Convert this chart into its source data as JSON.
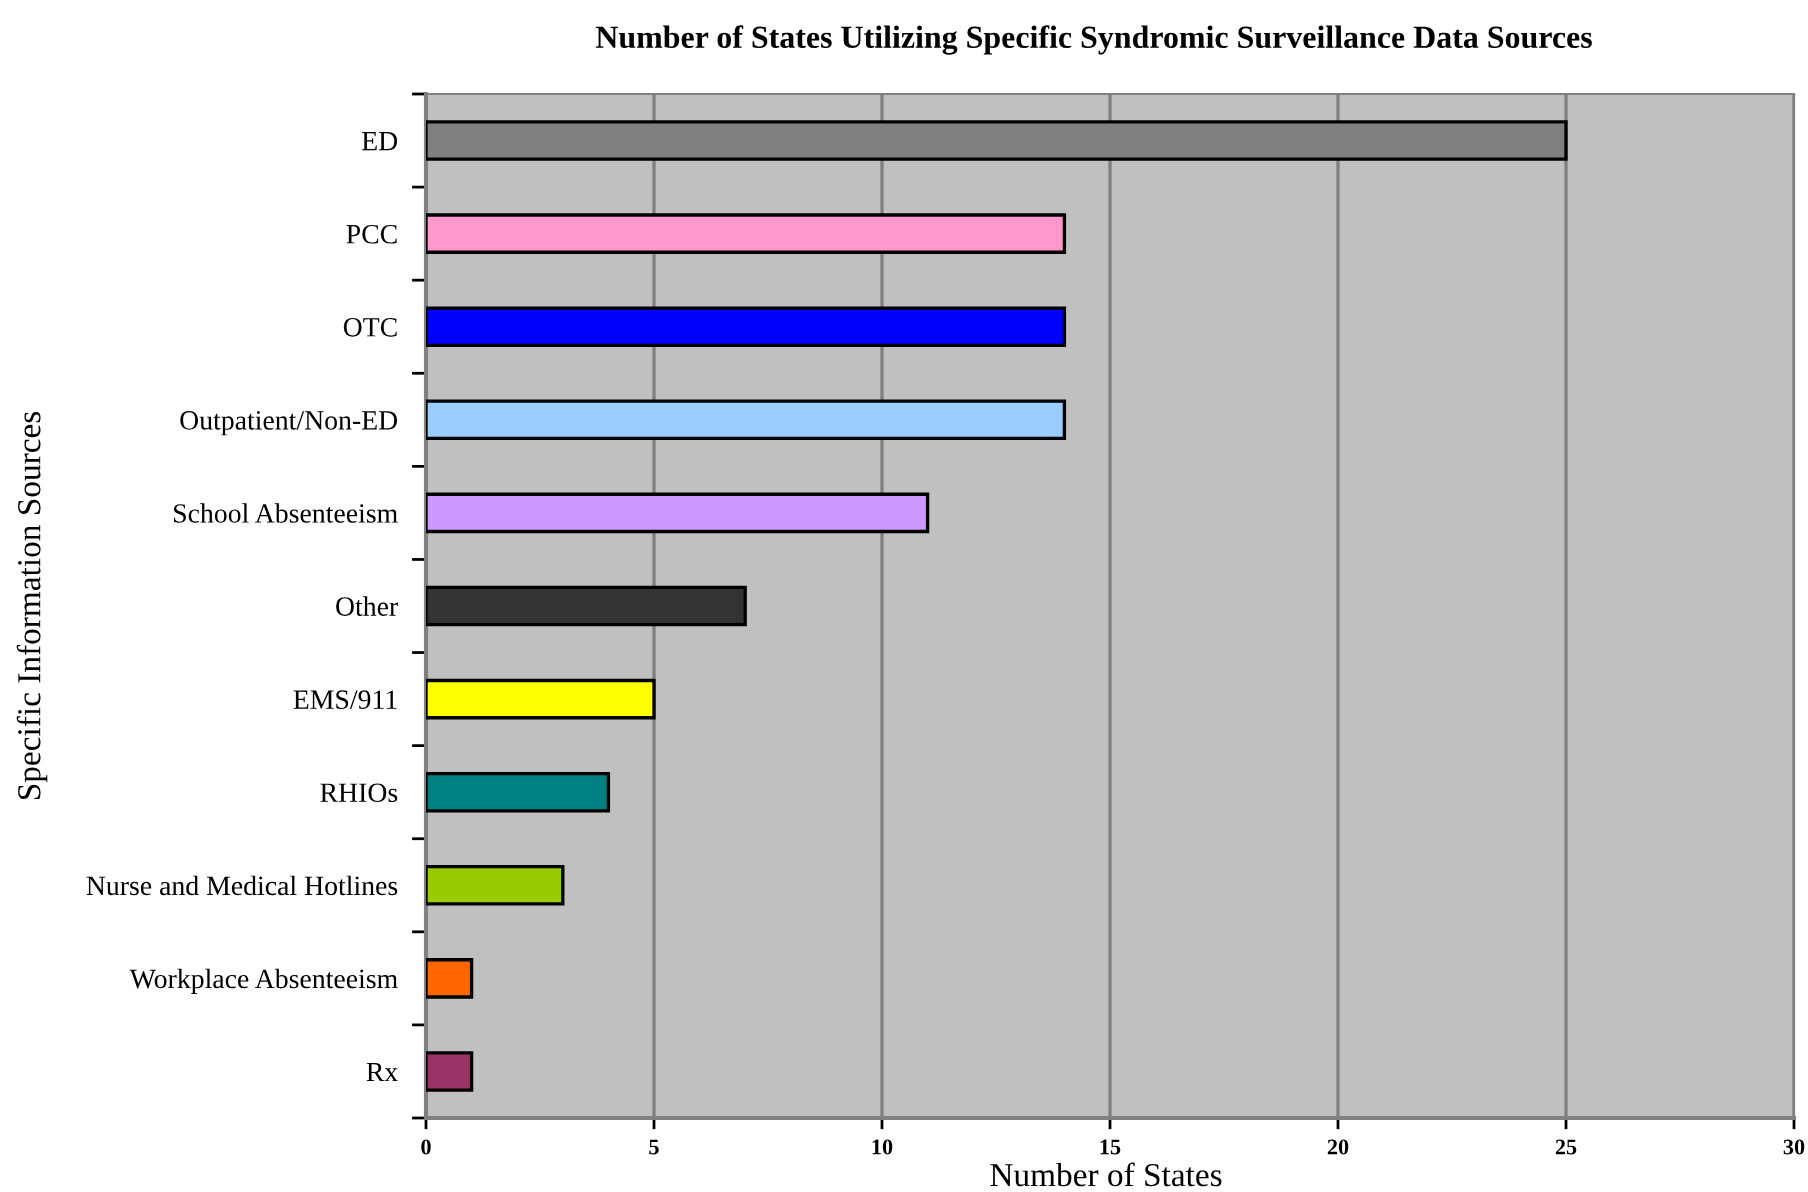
{
  "chart_data": {
    "type": "bar",
    "orientation": "horizontal",
    "title": "Number of States Utilizing Specific Syndromic Surveillance Data Sources",
    "xlabel": "Number of States",
    "ylabel": "Specific Information Sources",
    "categories": [
      "ED",
      "PCC",
      "OTC",
      "Outpatient/Non-ED",
      "School Absenteeism",
      "Other",
      "EMS/911",
      "RHIOs",
      "Nurse and Medical Hotlines",
      "Workplace Absenteeism",
      "Rx"
    ],
    "values": [
      25,
      14,
      14,
      14,
      11,
      7,
      5,
      4,
      3,
      1,
      1
    ],
    "colors": [
      "#808080",
      "#ff99cc",
      "#0000ff",
      "#99ccff",
      "#cc99ff",
      "#333333",
      "#ffff00",
      "#008080",
      "#99cc00",
      "#ff6600",
      "#993366"
    ],
    "xlim": [
      0,
      30
    ],
    "xticks": [
      0,
      5,
      10,
      15,
      20,
      25,
      30
    ],
    "grid": "x",
    "legend": false
  }
}
